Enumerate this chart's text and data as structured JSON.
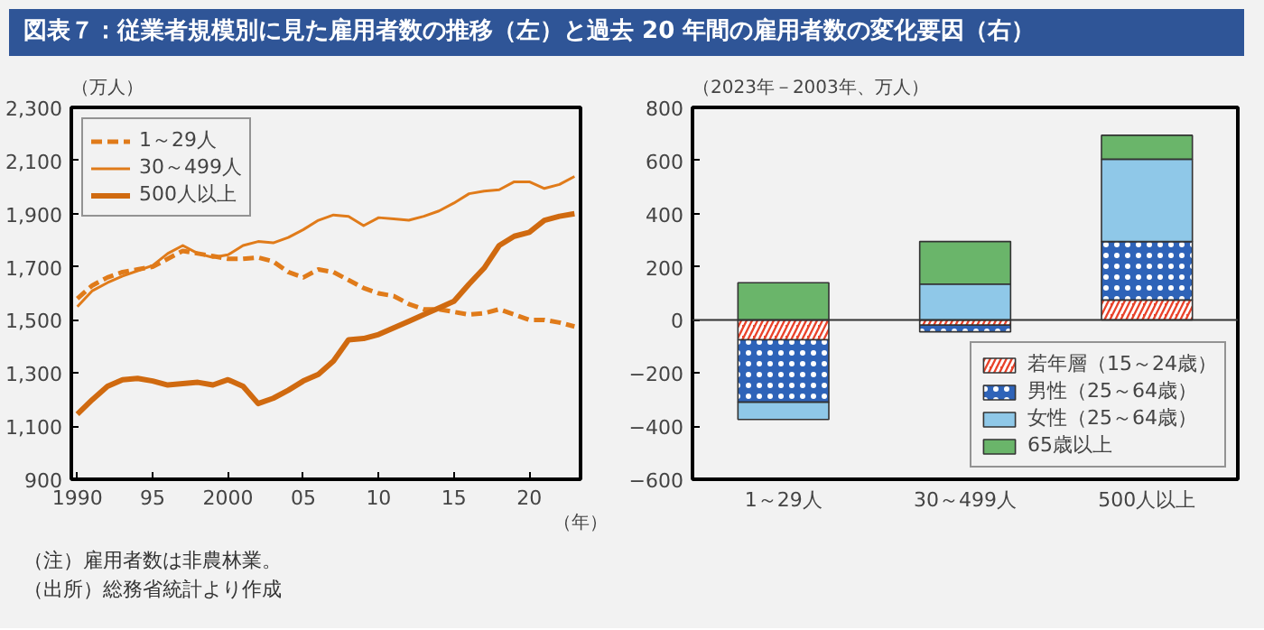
{
  "chart_data": [
    {
      "type": "line",
      "title": "図表７：従業者規模別に見た雇用者数の推移（左）と過去 20 年間の雇用者数の変化要因（右）",
      "ylabel": "（万人）",
      "xlabel": "（年）",
      "x": [
        1990,
        1991,
        1992,
        1993,
        1994,
        1995,
        1996,
        1997,
        1998,
        1999,
        2000,
        2001,
        2002,
        2003,
        2004,
        2005,
        2006,
        2007,
        2008,
        2009,
        2010,
        2011,
        2012,
        2013,
        2014,
        2015,
        2016,
        2017,
        2018,
        2019,
        2020,
        2021,
        2022,
        2023
      ],
      "series": [
        {
          "name": "1～29人",
          "color": "#e07b1a",
          "line_style": "dashed",
          "values": [
            1580,
            1630,
            1660,
            1680,
            1690,
            1700,
            1730,
            1760,
            1750,
            1740,
            1730,
            1730,
            1735,
            1720,
            1680,
            1660,
            1690,
            1680,
            1650,
            1620,
            1600,
            1590,
            1560,
            1540,
            1540,
            1530,
            1520,
            1525,
            1540,
            1520,
            1500,
            1500,
            1490,
            1475
          ]
        },
        {
          "name": "30～499人",
          "color": "#e07b1a",
          "line_style": "solid",
          "values": [
            1550,
            1610,
            1640,
            1665,
            1685,
            1705,
            1750,
            1780,
            1750,
            1735,
            1745,
            1780,
            1795,
            1790,
            1810,
            1840,
            1875,
            1895,
            1890,
            1855,
            1885,
            1880,
            1875,
            1890,
            1910,
            1940,
            1975,
            1985,
            1990,
            2020,
            2020,
            1995,
            2010,
            2040
          ]
        },
        {
          "name": "500人以上",
          "color": "#d06a10",
          "line_style": "solid",
          "values": [
            1145,
            1200,
            1250,
            1275,
            1280,
            1270,
            1255,
            1260,
            1265,
            1255,
            1275,
            1250,
            1185,
            1205,
            1235,
            1270,
            1295,
            1345,
            1425,
            1430,
            1445,
            1470,
            1495,
            1520,
            1545,
            1570,
            1635,
            1695,
            1780,
            1815,
            1830,
            1875,
            1890,
            1900
          ]
        }
      ],
      "xlim": [
        1989.6,
        2023.4
      ],
      "xticks": [
        1990,
        {
          "value": 1995,
          "label": "95"
        },
        2000,
        {
          "value": 2005,
          "label": "05"
        },
        {
          "value": 2010,
          "label": "10"
        },
        {
          "value": 2015,
          "label": "15"
        },
        {
          "value": 2020,
          "label": "20"
        }
      ],
      "ylim": [
        900,
        2300
      ],
      "yticks": [
        900,
        {
          "value": 1100,
          "label": "1,100"
        },
        {
          "value": 1300,
          "label": "1,300"
        },
        {
          "value": 1500,
          "label": "1,500"
        },
        {
          "value": 1700,
          "label": "1,700"
        },
        {
          "value": 1900,
          "label": "1,900"
        },
        {
          "value": 2100,
          "label": "2,100"
        },
        {
          "value": 2300,
          "label": "2,300"
        }
      ],
      "legend": "top left",
      "annotations": [
        "（注）雇用者数は非農林業。",
        "（出所）総務省統計より作成"
      ]
    },
    {
      "type": "bar",
      "stacked": true,
      "ylabel": "（2023年－2003年、万人）",
      "categories": [
        "1～29人",
        "30～499人",
        "500人以上"
      ],
      "series": [
        {
          "name": "若年層（15～24歳）",
          "color": "#e8432b",
          "values": [
            -75,
            -20,
            75
          ]
        },
        {
          "name": "男性（25～64歳）",
          "color": "#2e63b8",
          "values": [
            -235,
            -25,
            220
          ]
        },
        {
          "name": "女性（25～64歳）",
          "color": "#8fc8e8",
          "values": [
            -65,
            135,
            310
          ]
        },
        {
          "name": "65歳以上",
          "color": "#6ab56a",
          "values": [
            140,
            160,
            90
          ]
        }
      ],
      "ylim": [
        -600,
        800
      ],
      "yticks": [
        -600,
        -400,
        -200,
        0,
        200,
        400,
        600,
        800
      ],
      "ref_lines": [
        {
          "axis": "y",
          "value": 0,
          "color": "#333333"
        }
      ],
      "legend": "bottom right"
    }
  ]
}
